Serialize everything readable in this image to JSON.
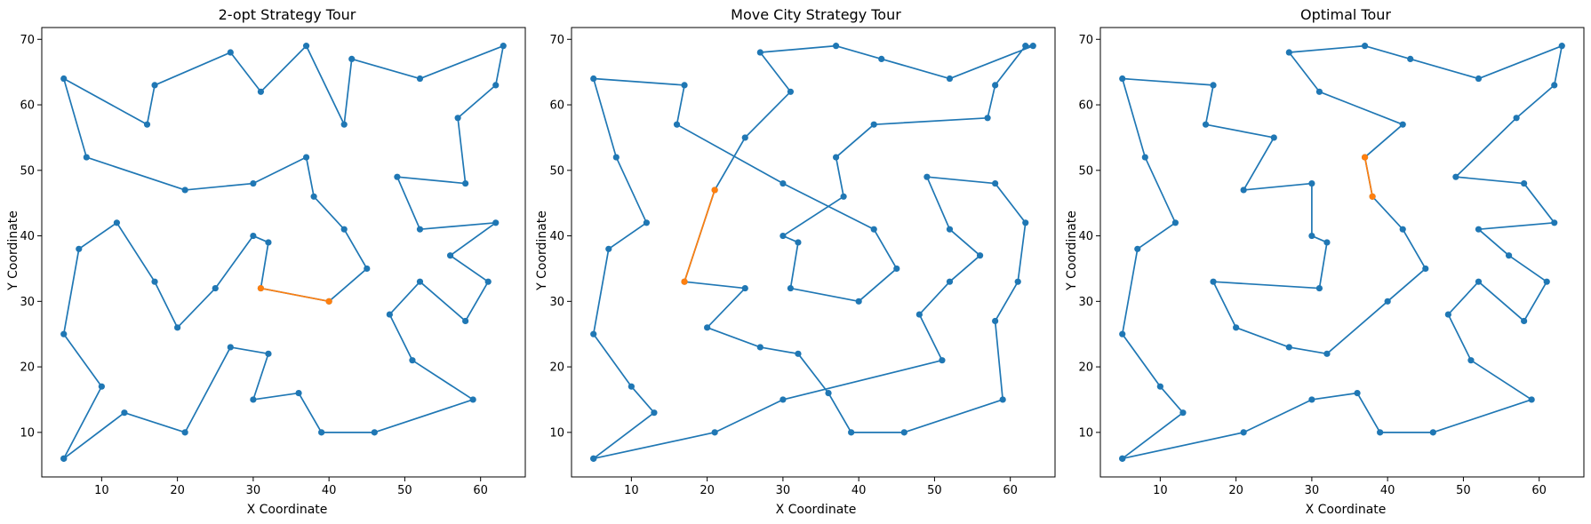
{
  "chart_data": [
    {
      "type": "line",
      "title": "2-opt Strategy Tour",
      "xlabel": "X Coordinate",
      "ylabel": "Y Coordinate",
      "xlim": [
        2.1,
        65.9
      ],
      "ylim": [
        3.2,
        71.8
      ],
      "xticks": [
        10,
        20,
        30,
        40,
        50,
        60
      ],
      "yticks": [
        10,
        20,
        30,
        40,
        50,
        60,
        70
      ],
      "grid": false,
      "colors": {
        "tour": "#1f77b4",
        "highlight": "#ff7f0e"
      },
      "series": [
        {
          "x": [
            5,
            10,
            5,
            7,
            12,
            17,
            20,
            25,
            30,
            32,
            31,
            40,
            45,
            42,
            38,
            37,
            30,
            21,
            8,
            5,
            16,
            17,
            27,
            31,
            37,
            42,
            43,
            52,
            63,
            62,
            57,
            58,
            49,
            52,
            62,
            56,
            61,
            58,
            52,
            48,
            51,
            59,
            46,
            39,
            36,
            30,
            32,
            27,
            21,
            13,
            5
          ],
          "y": [
            6,
            17,
            25,
            38,
            42,
            33,
            26,
            32,
            40,
            39,
            32,
            30,
            35,
            41,
            46,
            52,
            48,
            47,
            52,
            64,
            57,
            63,
            68,
            62,
            69,
            57,
            67,
            64,
            69,
            63,
            58,
            48,
            49,
            41,
            42,
            37,
            33,
            27,
            33,
            28,
            21,
            15,
            10,
            10,
            16,
            15,
            22,
            23,
            10,
            13,
            6
          ]
        },
        {
          "x": [
            31,
            40
          ],
          "y": [
            32,
            30
          ]
        }
      ]
    },
    {
      "type": "line",
      "title": "Move City Strategy Tour",
      "xlabel": "X Coordinate",
      "ylabel": "Y Coordinate",
      "xlim": [
        2.1,
        65.9
      ],
      "ylim": [
        3.2,
        71.8
      ],
      "xticks": [
        10,
        20,
        30,
        40,
        50,
        60
      ],
      "yticks": [
        10,
        20,
        30,
        40,
        50,
        60,
        70
      ],
      "grid": false,
      "colors": {
        "tour": "#1f77b4",
        "highlight": "#ff7f0e"
      },
      "series": [
        {
          "x": [
            5,
            13,
            10,
            5,
            7,
            12,
            8,
            5,
            17,
            16,
            30,
            42,
            45,
            40,
            31,
            32,
            30,
            38,
            37,
            42,
            57,
            58,
            62,
            63,
            52,
            43,
            37,
            27,
            31,
            25,
            21,
            17,
            25,
            20,
            27,
            32,
            36,
            39,
            46,
            59,
            58,
            61,
            62,
            58,
            49,
            52,
            56,
            52,
            48,
            51,
            30,
            21,
            5
          ],
          "y": [
            6,
            13,
            17,
            25,
            38,
            42,
            52,
            64,
            63,
            57,
            48,
            41,
            35,
            30,
            32,
            39,
            40,
            46,
            52,
            57,
            58,
            63,
            69,
            69,
            64,
            67,
            69,
            68,
            62,
            55,
            47,
            33,
            32,
            26,
            23,
            22,
            16,
            10,
            10,
            15,
            27,
            33,
            42,
            48,
            49,
            41,
            37,
            33,
            28,
            21,
            15,
            10,
            6
          ]
        },
        {
          "x": [
            21,
            17
          ],
          "y": [
            47,
            33
          ]
        }
      ]
    },
    {
      "type": "line",
      "title": "Optimal Tour",
      "xlabel": "X Coordinate",
      "ylabel": "Y Coordinate",
      "xlim": [
        2.1,
        65.9
      ],
      "ylim": [
        3.2,
        71.8
      ],
      "xticks": [
        10,
        20,
        30,
        40,
        50,
        60
      ],
      "yticks": [
        10,
        20,
        30,
        40,
        50,
        60,
        70
      ],
      "grid": false,
      "colors": {
        "tour": "#1f77b4",
        "highlight": "#ff7f0e"
      },
      "series": [
        {
          "x": [
            5,
            13,
            10,
            5,
            7,
            12,
            8,
            5,
            17,
            16,
            25,
            21,
            30,
            30,
            32,
            31,
            17,
            20,
            27,
            32,
            40,
            45,
            42,
            38,
            37,
            42,
            31,
            27,
            37,
            43,
            52,
            63,
            62,
            57,
            49,
            58,
            62,
            52,
            56,
            61,
            58,
            52,
            48,
            51,
            59,
            46,
            39,
            36,
            30,
            21,
            5
          ],
          "y": [
            6,
            13,
            17,
            25,
            38,
            42,
            52,
            64,
            63,
            57,
            55,
            47,
            48,
            40,
            39,
            32,
            33,
            26,
            23,
            22,
            30,
            35,
            41,
            46,
            52,
            57,
            62,
            68,
            69,
            67,
            64,
            69,
            63,
            58,
            49,
            48,
            42,
            41,
            37,
            33,
            27,
            33,
            28,
            21,
            15,
            10,
            10,
            16,
            15,
            10,
            6
          ]
        },
        {
          "x": [
            37,
            38
          ],
          "y": [
            52,
            46
          ]
        }
      ]
    }
  ]
}
